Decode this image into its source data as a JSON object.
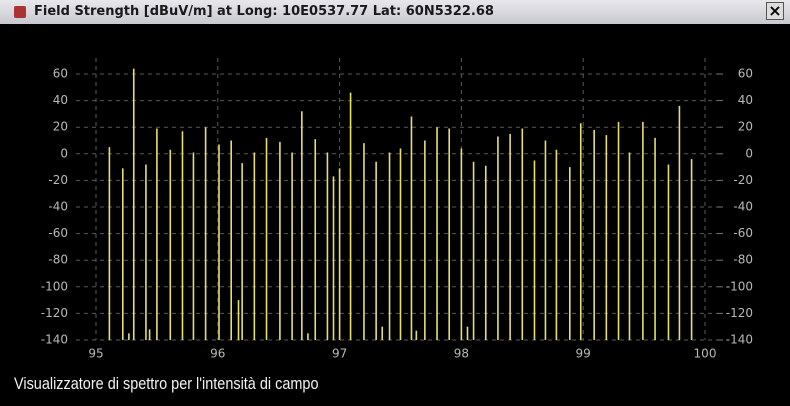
{
  "window_title": "Field Strength [dBuV/m] at Long: 10E0537.77  Lat: 60N5322.68",
  "caption": "Visualizzatore di spettro per l'intensità di campo",
  "chart_data": {
    "type": "bar",
    "color": "#e6df6e",
    "x": [
      95.11,
      95.22,
      95.27,
      95.31,
      95.41,
      95.44,
      95.5,
      95.61,
      95.71,
      95.8,
      95.9,
      96.01,
      96.11,
      96.17,
      96.2,
      96.3,
      96.4,
      96.51,
      96.61,
      96.69,
      96.74,
      96.8,
      96.9,
      96.95,
      97.0,
      97.09,
      97.2,
      97.3,
      97.35,
      97.41,
      97.5,
      97.59,
      97.63,
      97.7,
      97.8,
      97.9,
      98.0,
      98.05,
      98.1,
      98.2,
      98.3,
      98.4,
      98.5,
      98.6,
      98.69,
      98.78,
      98.89,
      98.98,
      99.09,
      99.19,
      99.29,
      99.38,
      99.49,
      99.59,
      99.7,
      99.79,
      99.89
    ],
    "values": [
      5,
      -11,
      -135,
      64,
      -8,
      -132,
      19,
      3,
      17,
      1,
      20,
      7,
      10,
      -110,
      -7,
      1,
      12,
      9,
      1,
      32,
      -135,
      11,
      1,
      -17,
      -11,
      46,
      8,
      -6,
      -130,
      1,
      4,
      28,
      -133,
      10,
      20,
      19,
      4,
      -130,
      -6,
      -9,
      13,
      15,
      19,
      -5,
      10,
      3,
      -10,
      23,
      18,
      14,
      24,
      1,
      24,
      12,
      -8,
      36,
      -4
    ],
    "xlim": [
      95,
      100
    ],
    "xticks": [
      95,
      96,
      97,
      98,
      99,
      100
    ],
    "ylim": [
      -140,
      60
    ],
    "yticks": [
      60,
      40,
      20,
      0,
      -20,
      -40,
      -60,
      -80,
      -100,
      -120,
      -140
    ],
    "y2lim": [
      -140,
      60
    ],
    "y2ticks": [
      60,
      40,
      20,
      0,
      -20,
      -40,
      -60,
      -80,
      -100,
      -120,
      -140
    ],
    "grid": true
  }
}
